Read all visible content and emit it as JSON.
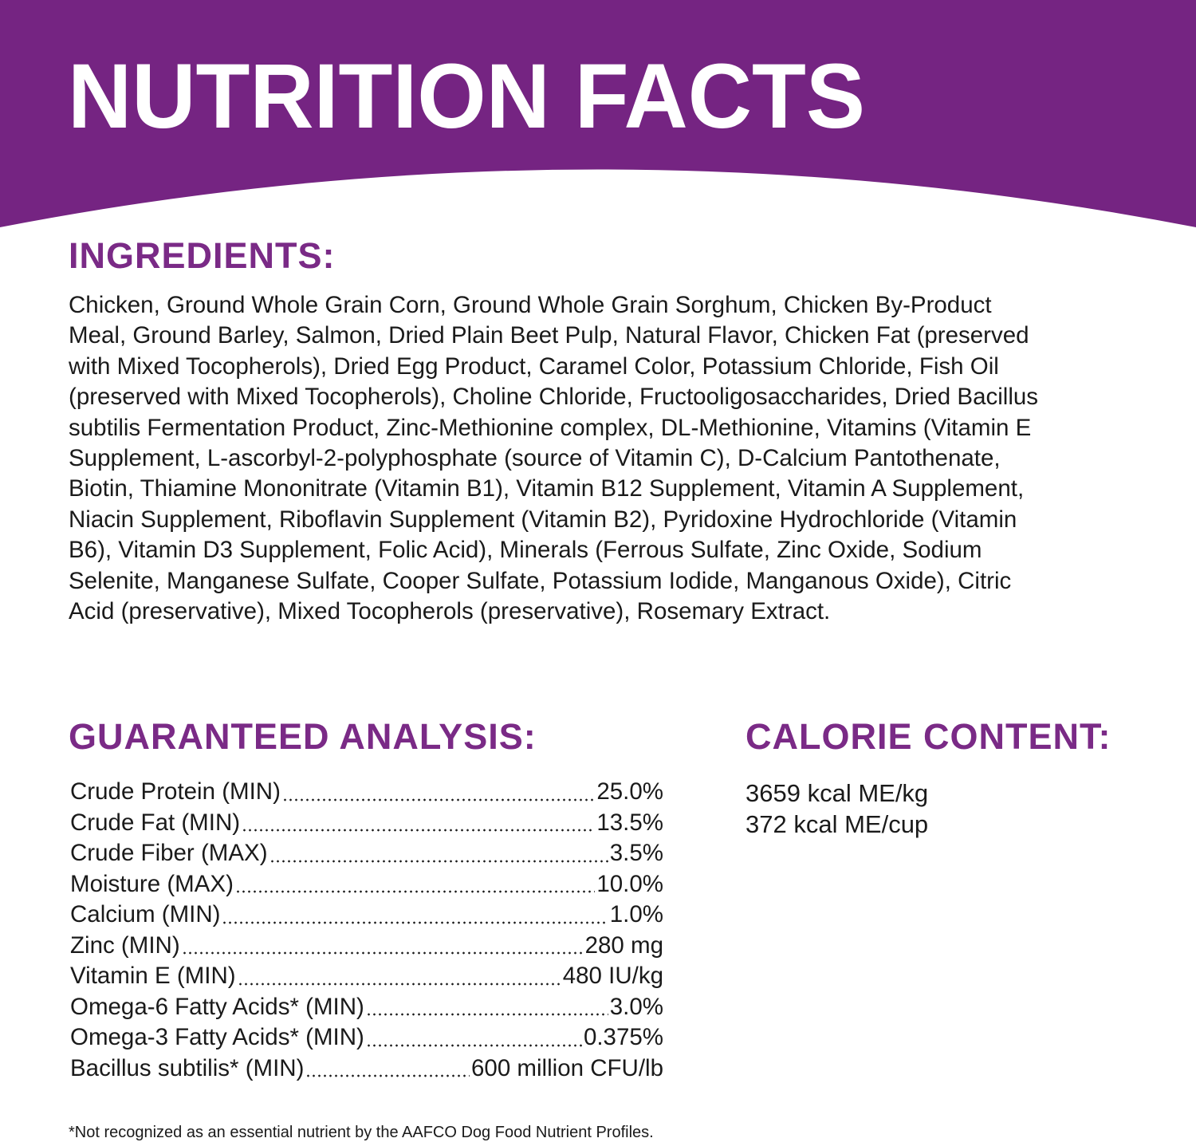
{
  "header": {
    "title": "NUTRITION FACTS"
  },
  "ingredients": {
    "title": "INGREDIENTS:",
    "lines": [
      "Chicken, Ground Whole Grain Corn, Ground Whole Grain Sorghum, Chicken By-Product",
      "Meal, Ground Barley, Salmon, Dried Plain Beet Pulp, Natural Flavor, Chicken Fat (preserved",
      "with Mixed Tocopherols), Dried Egg Product, Caramel Color, Potassium Chloride, Fish Oil",
      "(preserved with Mixed Tocopherols), Choline Chloride, Fructooligosaccharides, Dried Bacillus",
      "subtilis Fermentation Product, Zinc-Methionine complex, DL-Methionine, Vitamins (Vitamin E",
      "Supplement, L-ascorbyl-2-polyphosphate (source of Vitamin C), D-Calcium Pantothenate,",
      "Biotin, Thiamine Mononitrate (Vitamin B1), Vitamin B12 Supplement, Vitamin A Supplement,",
      "Niacin Supplement, Riboflavin Supplement (Vitamin B2), Pyridoxine Hydrochloride (Vitamin",
      "B6), Vitamin D3 Supplement, Folic Acid), Minerals (Ferrous Sulfate, Zinc Oxide, Sodium",
      "Selenite, Manganese Sulfate, Cooper Sulfate, Potassium Iodide, Manganous Oxide), Citric",
      "Acid (preservative), Mixed Tocopherols (preservative), Rosemary Extract."
    ]
  },
  "analysis": {
    "title": "GUARANTEED ANALYSIS:",
    "rows": [
      [
        "Crude Protein (MIN)",
        "25.0%"
      ],
      [
        "Crude Fat (MIN)",
        "13.5%"
      ],
      [
        "Crude Fiber (MAX)",
        "3.5%"
      ],
      [
        "Moisture (MAX)",
        "10.0%"
      ],
      [
        "Calcium (MIN)",
        "1.0%"
      ],
      [
        "Zinc (MIN)",
        "280 mg"
      ],
      [
        "Vitamin E (MIN)",
        "480 IU/kg"
      ],
      [
        "Omega-6 Fatty Acids* (MIN)",
        "3.0%"
      ],
      [
        "Omega-3 Fatty Acids* (MIN)",
        "0.375%"
      ],
      [
        "Bacillus subtilis* (MIN)",
        "600 million CFU/lb"
      ]
    ]
  },
  "calories": {
    "title": "CALORIE CONTENT:",
    "lines": [
      "3659 kcal ME/kg",
      "372 kcal ME/cup"
    ]
  },
  "footnote": "*Not recognized as an essential nutrient by the AAFCO Dog Food Nutrient Profiles."
}
